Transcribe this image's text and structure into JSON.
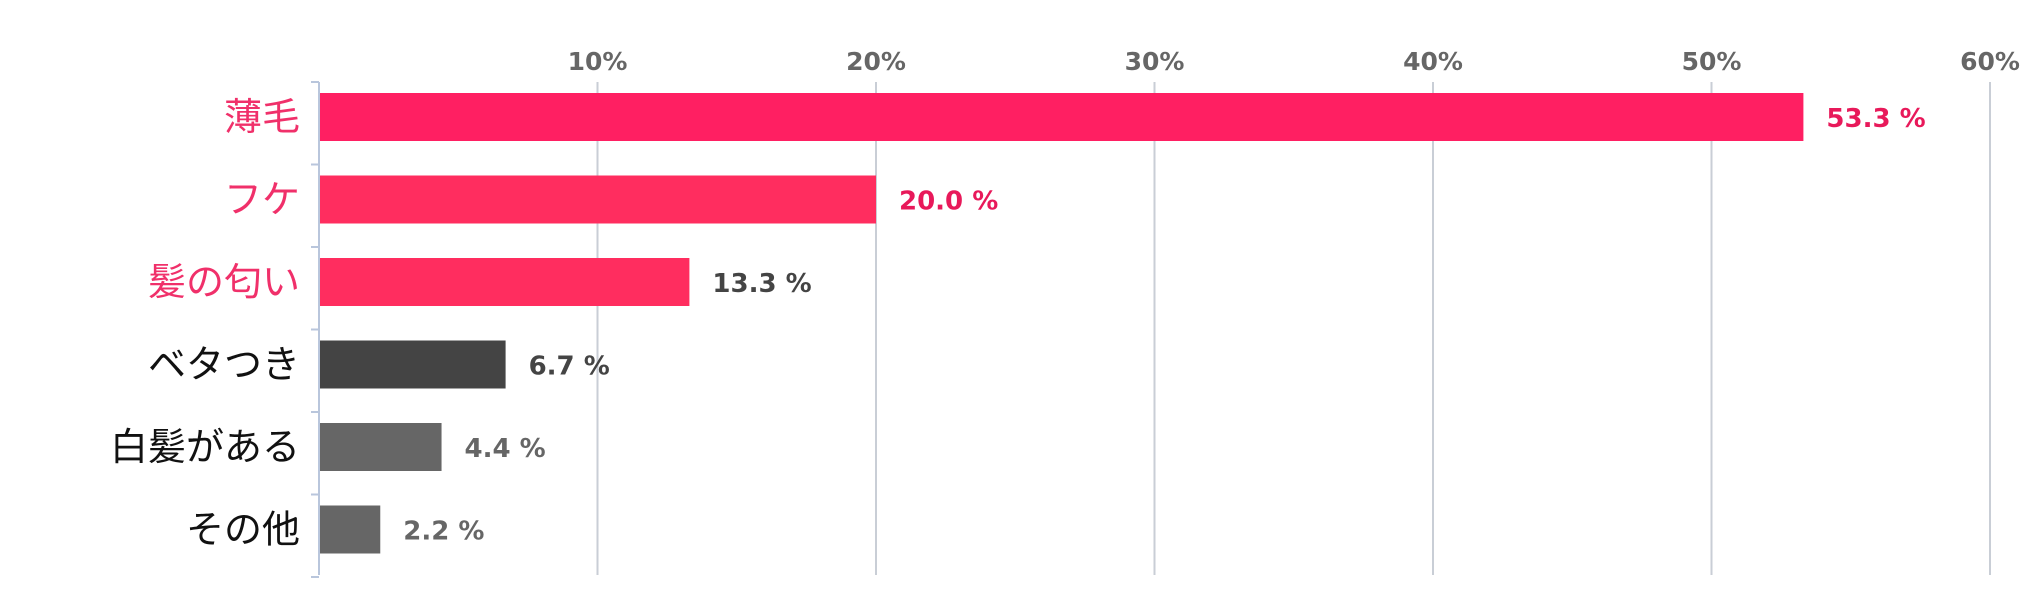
{
  "chart_data": {
    "type": "bar",
    "orientation": "horizontal",
    "categories": [
      "薄毛",
      "フケ",
      "髪の匂い",
      "ベタつき",
      "白髪がある",
      "その他"
    ],
    "values": [
      53.3,
      20.0,
      13.3,
      6.7,
      4.4,
      2.2
    ],
    "value_labels": [
      "53.3 %",
      "20.0 %",
      "13.3 %",
      "6.7 %",
      "4.4 %",
      "2.2 %"
    ],
    "xlim": [
      0,
      60
    ],
    "x_ticks": [
      10,
      20,
      30,
      40,
      50,
      60
    ],
    "x_tick_labels": [
      "10%",
      "20%",
      "30%",
      "40%",
      "50%",
      "60%"
    ],
    "x_axis_position": "top",
    "grid": true,
    "bar_colors": [
      "#ff1f62",
      "#ff2d5f",
      "#ff2d5f",
      "#444444",
      "#666666",
      "#666666"
    ],
    "label_colors": [
      "#f0306a",
      "#f0306a",
      "#f0306a",
      "#111111",
      "#111111",
      "#111111"
    ],
    "value_label_colors": [
      "#e8195a",
      "#e8195a",
      "#444444",
      "#444444",
      "#666666",
      "#666666"
    ]
  }
}
